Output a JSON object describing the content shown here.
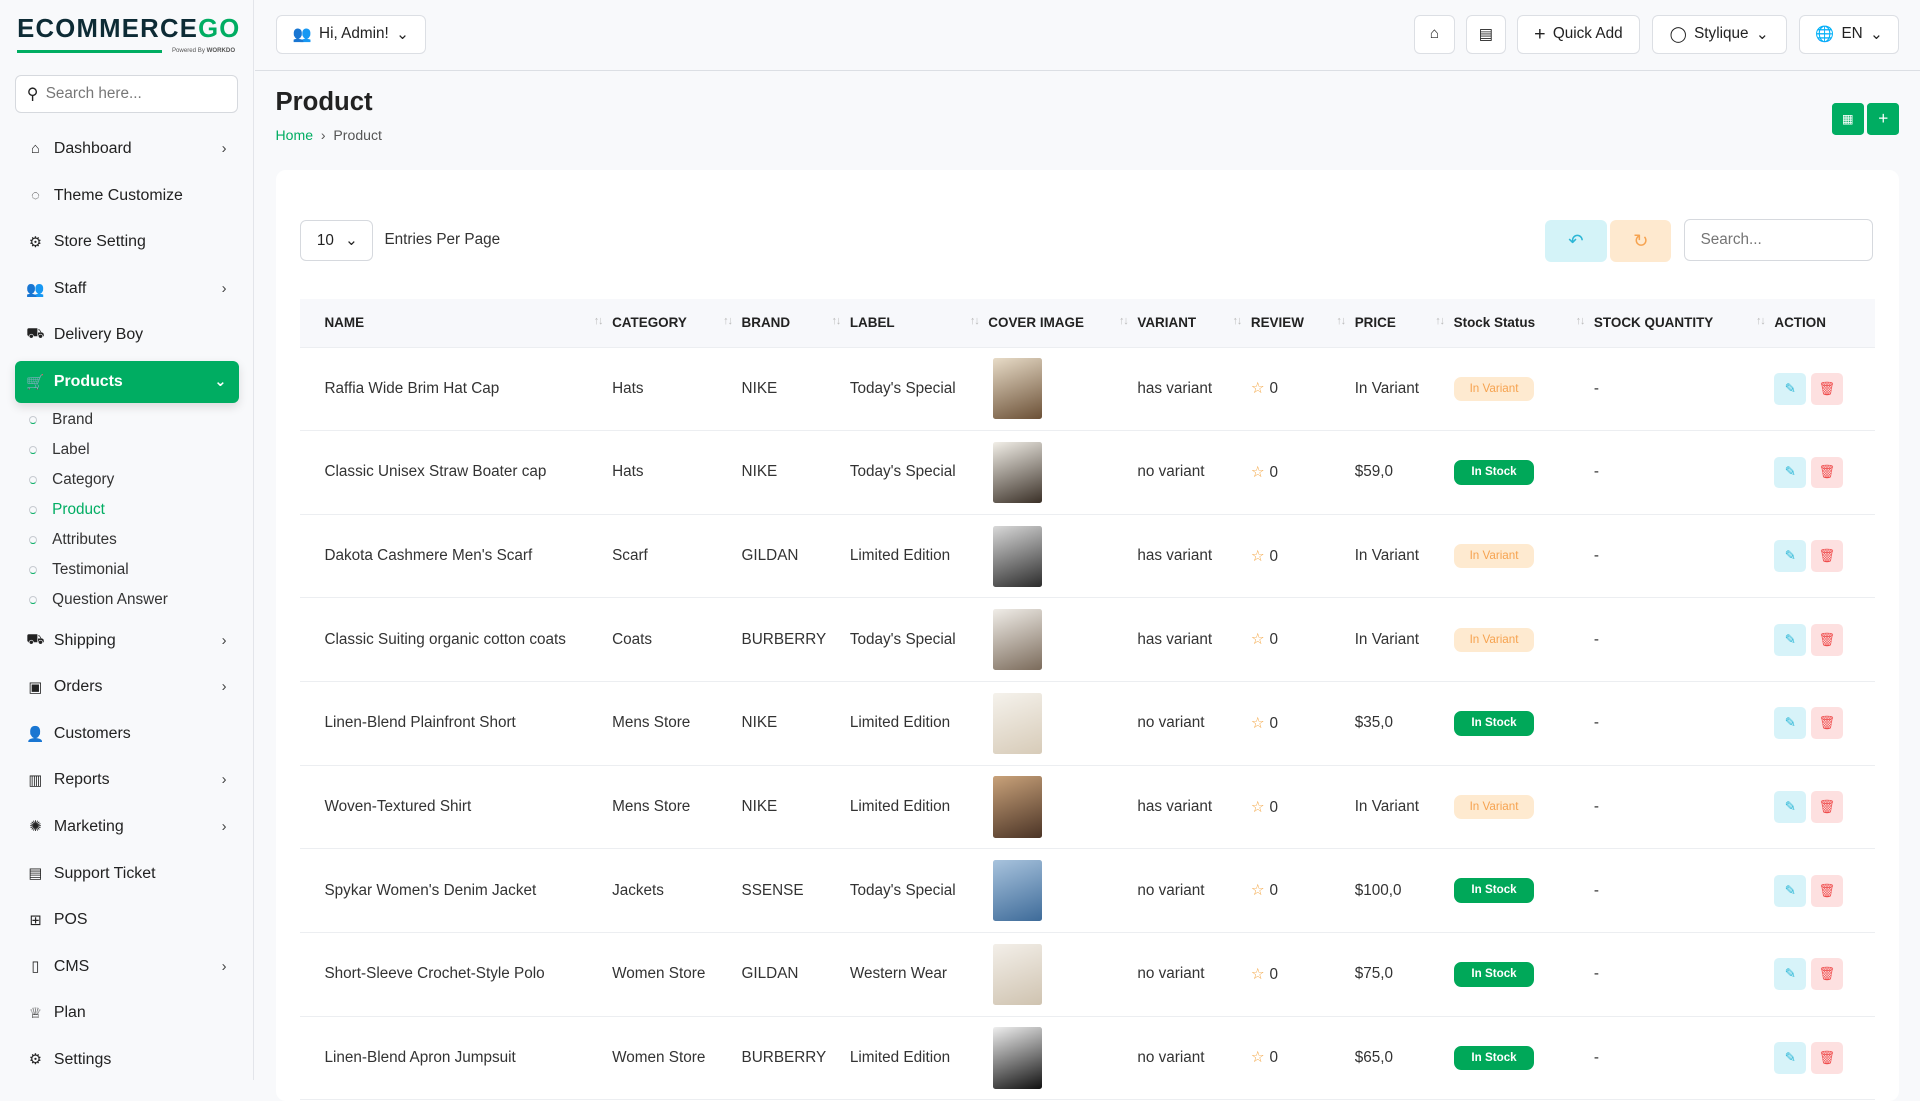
{
  "brand": {
    "logo": "ECOMMERCEGO",
    "powered": "Powered By WORKDO",
    "accent": "#00ad62"
  },
  "sidebar": {
    "search_placeholder": "Search here...",
    "items": [
      {
        "label": "Dashboard",
        "icon": "home-icon",
        "chev": true
      },
      {
        "label": "Theme Customize",
        "icon": "palette-icon"
      },
      {
        "label": "Store Setting",
        "icon": "gear-icon"
      },
      {
        "label": "Staff",
        "icon": "users-icon",
        "chev": true
      },
      {
        "label": "Delivery Boy",
        "icon": "truck-icon"
      },
      {
        "label": "Products",
        "icon": "cart-icon",
        "chev": true,
        "active": true
      }
    ],
    "sub_items": [
      {
        "label": "Brand"
      },
      {
        "label": "Label"
      },
      {
        "label": "Category"
      },
      {
        "label": "Product",
        "active": true
      },
      {
        "label": "Attributes"
      },
      {
        "label": "Testimonial"
      },
      {
        "label": "Question Answer"
      }
    ],
    "items2": [
      {
        "label": "Shipping",
        "icon": "truck-icon",
        "chev": true
      },
      {
        "label": "Orders",
        "icon": "box-icon",
        "chev": true
      },
      {
        "label": "Customers",
        "icon": "user-icon"
      },
      {
        "label": "Reports",
        "icon": "chart-icon",
        "chev": true
      },
      {
        "label": "Marketing",
        "icon": "marketing-icon",
        "chev": true
      },
      {
        "label": "Support Ticket",
        "icon": "ticket-icon"
      },
      {
        "label": "POS",
        "icon": "pos-icon"
      },
      {
        "label": "CMS",
        "icon": "cms-icon",
        "chev": true
      },
      {
        "label": "Plan",
        "icon": "trophy-icon"
      },
      {
        "label": "Settings",
        "icon": "gear-icon"
      }
    ]
  },
  "header": {
    "user": "Hi, Admin!",
    "quick_add": "Quick Add",
    "theme": "Stylique",
    "lang": "EN"
  },
  "page": {
    "title": "Product",
    "breadcrumb_home": "Home",
    "breadcrumb_current": "Product"
  },
  "table": {
    "entries": "10",
    "entries_label": "Entries Per Page",
    "search_placeholder": "Search...",
    "columns": [
      "NAME",
      "CATEGORY",
      "BRAND",
      "LABEL",
      "COVER IMAGE",
      "VARIANT",
      "REVIEW",
      "PRICE",
      "Stock Status",
      "STOCK QUANTITY",
      "ACTION"
    ],
    "rows": [
      {
        "name": "Raffia Wide Brim Hat Cap",
        "category": "Hats",
        "brand": "NIKE",
        "label": "Today's Special",
        "variant": "has variant",
        "review": "0",
        "price": "In Variant",
        "status": "In Variant",
        "qty": "-"
      },
      {
        "name": "Classic Unisex Straw Boater cap",
        "category": "Hats",
        "brand": "NIKE",
        "label": "Today's Special",
        "variant": "no variant",
        "review": "0",
        "price": "$59,0",
        "status": "In Stock",
        "qty": "-"
      },
      {
        "name": "Dakota Cashmere Men's Scarf",
        "category": "Scarf",
        "brand": "GILDAN",
        "label": "Limited Edition",
        "variant": "has variant",
        "review": "0",
        "price": "In Variant",
        "status": "In Variant",
        "qty": "-"
      },
      {
        "name": "Classic Suiting organic cotton coats",
        "category": "Coats",
        "brand": "BURBERRY",
        "label": "Today's Special",
        "variant": "has variant",
        "review": "0",
        "price": "In Variant",
        "status": "In Variant",
        "qty": "-"
      },
      {
        "name": "Linen-Blend Plainfront Short",
        "category": "Mens Store",
        "brand": "NIKE",
        "label": "Limited Edition",
        "variant": "no variant",
        "review": "0",
        "price": "$35,0",
        "status": "In Stock",
        "qty": "-"
      },
      {
        "name": "Woven-Textured Shirt",
        "category": "Mens Store",
        "brand": "NIKE",
        "label": "Limited Edition",
        "variant": "has variant",
        "review": "0",
        "price": "In Variant",
        "status": "In Variant",
        "qty": "-"
      },
      {
        "name": "Spykar Women's Denim Jacket",
        "category": "Jackets",
        "brand": "SSENSE",
        "label": "Today's Special",
        "variant": "no variant",
        "review": "0",
        "price": "$100,0",
        "status": "In Stock",
        "qty": "-"
      },
      {
        "name": "Short-Sleeve Crochet-Style Polo",
        "category": "Women Store",
        "brand": "GILDAN",
        "label": "Western Wear",
        "variant": "no variant",
        "review": "0",
        "price": "$75,0",
        "status": "In Stock",
        "qty": "-"
      },
      {
        "name": "Linen-Blend Apron Jumpsuit",
        "category": "Women Store",
        "brand": "BURBERRY",
        "label": "Limited Edition",
        "variant": "no variant",
        "review": "0",
        "price": "$65,0",
        "status": "In Stock",
        "qty": "-"
      }
    ]
  }
}
